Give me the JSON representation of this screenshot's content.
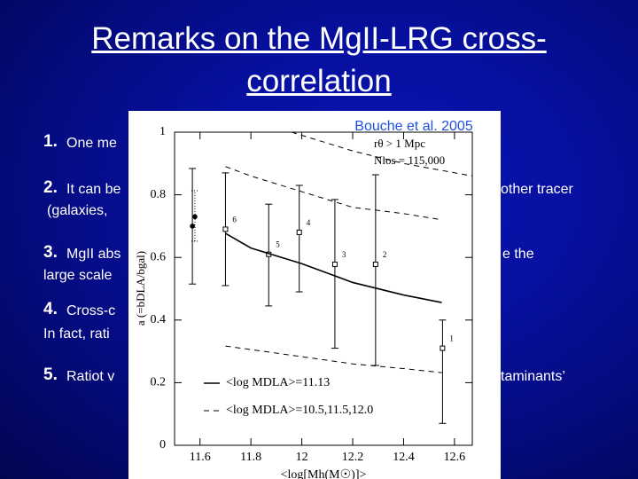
{
  "title": "Remarks on the MgII-LRG cross-correlation",
  "items": [
    {
      "number": "1.",
      "left": "One me"
    },
    {
      "number": "2.",
      "left": "It can be",
      "right": "other tracer",
      "continuation": "(galaxies,"
    },
    {
      "number": "3.",
      "left": "MgII abs",
      "right": "e the",
      "continuation": "large scale"
    },
    {
      "number": "4.",
      "left": "Cross-c",
      "continuation": "In fact, rati"
    },
    {
      "number": "5.",
      "left": "Ratiot  v",
      "right": "taminants’"
    }
  ],
  "chart_data": {
    "type": "scatter",
    "annotation": "Bouche et al. 2005",
    "notes": [
      "rθ > 1 Mpc",
      "Nlos = 115,000"
    ],
    "xlabel": "<log[Mh(M☉)]>",
    "ylabel": "a (=bDLA/bgal)",
    "xlim": [
      11.5,
      12.67
    ],
    "ylim": [
      0,
      1
    ],
    "xticks": [
      11.6,
      11.8,
      12,
      12.2,
      12.4,
      12.6
    ],
    "yticks": [
      0,
      0.2,
      0.4,
      0.6,
      0.8,
      1
    ],
    "legend": "lower-left",
    "color": "#000000",
    "series": [
      {
        "style": "open-square",
        "x": [
          12.553,
          12.29,
          12.13,
          11.99,
          11.87,
          11.7
        ],
        "values": [
          0.31,
          0.578,
          0.578,
          0.68,
          0.61,
          0.69
        ],
        "low": [
          0.07,
          0.255,
          0.31,
          0.49,
          0.445,
          0.51
        ],
        "high": [
          0.4,
          0.864,
          0.785,
          0.83,
          0.77,
          0.87
        ],
        "labels": [
          "1",
          "2",
          "3",
          "4",
          "5",
          "6"
        ],
        "errorbar": "solid"
      },
      {
        "style": "filled-circle",
        "x": [
          11.57
        ],
        "values": [
          0.7
        ],
        "low": [
          0.515
        ],
        "high": [
          0.884
        ],
        "errorbar": "solid"
      },
      {
        "style": "filled-circle",
        "x": [
          11.58
        ],
        "values": [
          0.73
        ],
        "low": [
          0.652
        ],
        "high": [
          0.813
        ],
        "errorbar": "dotted"
      },
      {
        "name": "<log MDLA>=11.13",
        "style": "solid",
        "x": [
          11.7,
          11.8,
          12,
          12.2,
          12.4,
          12.55
        ],
        "values": [
          0.677,
          0.63,
          0.58,
          0.52,
          0.48,
          0.456
        ]
      },
      {
        "name": "<log MDLA>=10.5,11.5,12.0",
        "style": "dashed",
        "x": [
          11.7,
          11.8,
          12,
          12.2,
          12.4,
          12.55,
          null,
          11.96,
          12.2,
          12.4,
          12.67,
          null,
          11.7,
          12,
          12.2,
          12.4,
          12.55
        ],
        "values": [
          0.89,
          0.86,
          0.81,
          0.76,
          0.74,
          0.72,
          null,
          1.0,
          0.94,
          0.9,
          0.86,
          null,
          0.317,
          0.283,
          0.26,
          0.245,
          0.232
        ]
      }
    ]
  }
}
